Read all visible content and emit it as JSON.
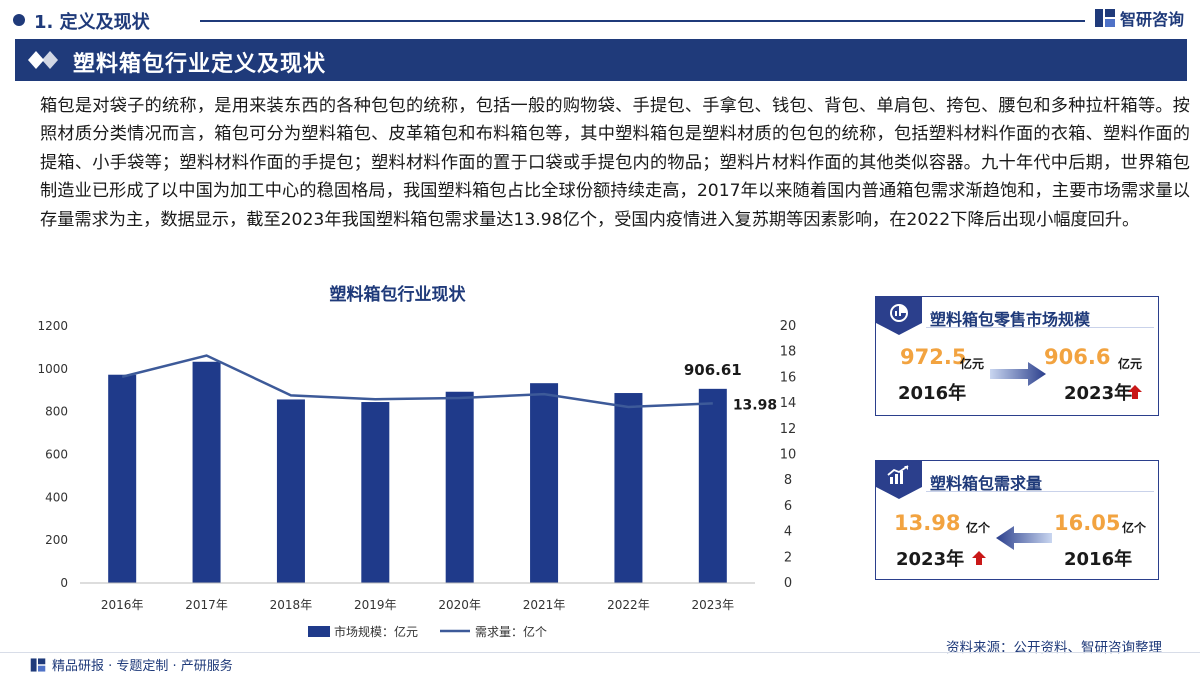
{
  "header": {
    "section_label": "1. 定义及现状",
    "brand_name": "智研咨询"
  },
  "title": "塑料箱包行业定义及现状",
  "intro_text": "箱包是对袋子的统称，是用来装东西的各种包包的统称，包括一般的购物袋、手提包、手拿包、钱包、背包、单肩包、挎包、腰包和多种拉杆箱等。按照材质分类情况而言，箱包可分为塑料箱包、皮革箱包和布料箱包等，其中塑料箱包是塑料材质的包包的统称，包括塑料材料作面的衣箱、塑料作面的提箱、小手袋等；塑料材料作面的手提包；塑料材料作面的置于口袋或手提包内的物品；塑料片材料作面的其他类似容器。九十年代中后期，世界箱包制造业已形成了以中国为加工中心的稳固格局，我国塑料箱包占比全球份额持续走高，2017年以来随着国内普通箱包需求渐趋饱和，主要市场需求量以存量需求为主，数据显示，截至2023年我国塑料箱包需求量达13.98亿个，受国内疫情进入复苏期等因素影响，在2022下降后出现小幅度回升。",
  "chart_data": {
    "type": "bar+line",
    "title": "塑料箱包行业现状",
    "categories": [
      "2016年",
      "2017年",
      "2018年",
      "2019年",
      "2020年",
      "2021年",
      "2022年",
      "2023年"
    ],
    "series": [
      {
        "name": "市场规模：亿元",
        "type": "bar",
        "axis": "left",
        "color": "#1f3a8a",
        "values": [
          972.5,
          1033,
          857,
          845,
          893,
          933,
          887,
          906.61
        ]
      },
      {
        "name": "需求量：亿个",
        "type": "line",
        "axis": "right",
        "color": "#3d5a99",
        "values": [
          16.05,
          17.7,
          14.6,
          14.3,
          14.4,
          14.7,
          13.7,
          13.98
        ]
      }
    ],
    "left_axis": {
      "min": 0,
      "max": 1200,
      "ticks": [
        0,
        200,
        400,
        600,
        800,
        1000,
        1200
      ]
    },
    "right_axis": {
      "min": 0,
      "max": 20,
      "ticks": [
        0,
        2,
        4,
        6,
        8,
        10,
        12,
        14,
        16,
        18,
        20
      ]
    },
    "annotations": {
      "bar_last": "906.61",
      "line_last": "13.98"
    },
    "legend_position": "bottom",
    "grid": false
  },
  "card_retail": {
    "title": "塑料箱包零售市场规模",
    "from_value": "972.5",
    "from_unit": "亿元",
    "from_year": "2016年",
    "to_value": "906.6",
    "to_unit": "亿元",
    "to_year": "2023年",
    "icon": "chart-pie-icon"
  },
  "card_demand": {
    "title": "塑料箱包需求量",
    "current_value": "13.98",
    "current_unit": "亿个",
    "current_year": "2023年",
    "past_value": "16.05",
    "past_unit": "亿个",
    "past_year": "2016年",
    "icon": "trend-chart-icon"
  },
  "footer": {
    "left": "精品研报 · 专题定制 · 产研服务",
    "right": "资料来源：公开资料、智研咨询整理"
  },
  "colors": {
    "brand": "#1f3a7a",
    "accent": "#f2a340",
    "up_arrow": "#c91818"
  }
}
